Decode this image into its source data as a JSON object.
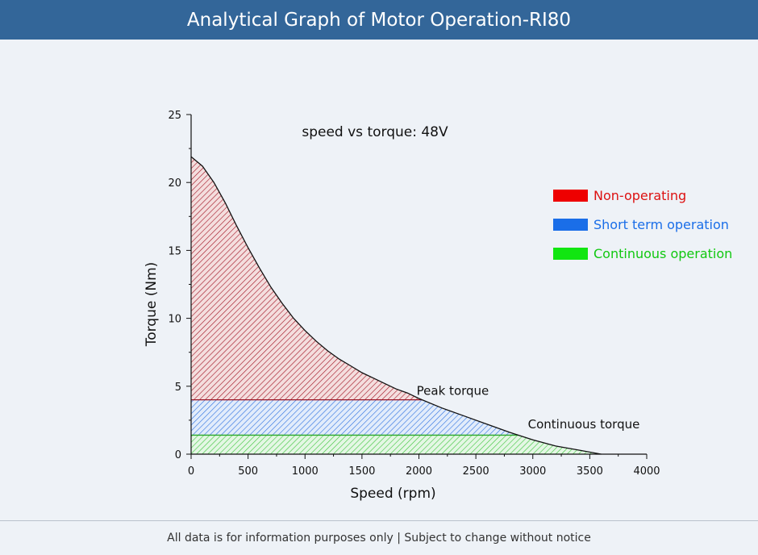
{
  "header": {
    "title": "Analytical Graph of Motor Operation-RI80"
  },
  "footer": {
    "note": "All data is for information purposes only | Subject to change without notice"
  },
  "colors": {
    "header_bg": "#336699",
    "non_operating": "#ee0000",
    "short_term": "#1a6ee8",
    "continuous": "#11e611"
  },
  "chart_data": {
    "type": "area",
    "title": "speed vs torque: 48V",
    "xlabel": "Speed (rpm)",
    "ylabel": "Torque (Nm)",
    "xlim": [
      0,
      4000
    ],
    "ylim": [
      0,
      25
    ],
    "xticks": [
      0,
      500,
      1000,
      1500,
      2000,
      2500,
      3000,
      3500,
      4000
    ],
    "yticks": [
      0,
      5,
      10,
      15,
      20,
      25
    ],
    "grid": false,
    "legend_position": "right",
    "legend": [
      {
        "label": "Non-operating",
        "color": "#ee0000"
      },
      {
        "label": "Short term operation",
        "color": "#1a6ee8"
      },
      {
        "label": "Continuous operation",
        "color": "#11e611"
      }
    ],
    "torque_curve": {
      "x": [
        0,
        100,
        200,
        300,
        400,
        500,
        600,
        700,
        800,
        900,
        1000,
        1100,
        1200,
        1300,
        1400,
        1500,
        1600,
        1700,
        1800,
        1900,
        2000,
        2200,
        2400,
        2600,
        2800,
        3000,
        3200,
        3400,
        3600
      ],
      "y": [
        21.9,
        21.2,
        20.0,
        18.5,
        16.8,
        15.2,
        13.7,
        12.3,
        11.1,
        10.0,
        9.1,
        8.3,
        7.6,
        7.0,
        6.5,
        6.0,
        5.6,
        5.2,
        4.8,
        4.5,
        4.1,
        3.4,
        2.8,
        2.2,
        1.6,
        1.05,
        0.6,
        0.3,
        0.0
      ]
    },
    "peak_torque": 4.0,
    "continuous_torque": 1.4,
    "annotations": [
      {
        "text": "Peak torque",
        "x": 1980,
        "y": 4.2
      },
      {
        "text": "Continuous torque",
        "x": 2900,
        "y": 1.6
      }
    ]
  }
}
